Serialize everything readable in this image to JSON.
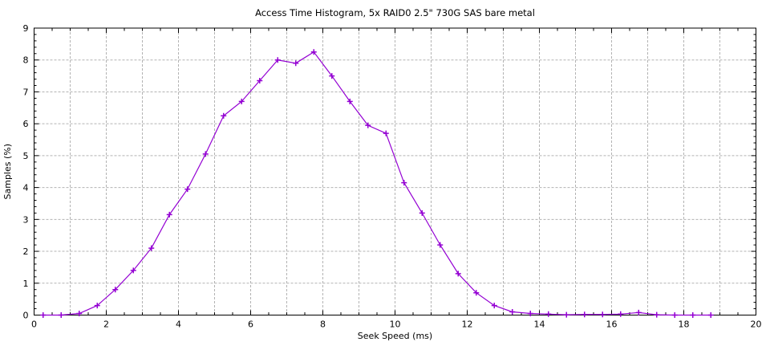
{
  "chart_data": {
    "type": "line",
    "title": "Access Time Histogram, 5x RAID0 2.5\" 730G SAS bare metal",
    "xlabel": "Seek Speed (ms)",
    "ylabel": "Samples (%)",
    "xlim": [
      0,
      20
    ],
    "ylim": [
      0,
      9
    ],
    "x_tick_labels": [
      0,
      2,
      4,
      6,
      8,
      10,
      12,
      14,
      16,
      18,
      20
    ],
    "y_tick_labels": [
      0,
      1,
      2,
      3,
      4,
      5,
      6,
      7,
      8,
      9
    ],
    "x_major_step": 2,
    "y_major_step": 1,
    "x_minor_step": 0.5,
    "y_minor_step": 0.2,
    "grid": true,
    "grid_x_step": 1,
    "grid_y_step": 1,
    "legend_position": "none",
    "colors": {
      "series": "#9400d3",
      "grid": "#b3b3b3",
      "axis": "#000000",
      "text": "#000000",
      "background": "#ffffff"
    },
    "series": [
      {
        "name": "samples",
        "color": "#9400d3",
        "marker": "plus",
        "line_width": 1.2,
        "x": [
          0.25,
          0.75,
          1.25,
          1.75,
          2.25,
          2.75,
          3.25,
          3.75,
          4.25,
          4.75,
          5.25,
          5.75,
          6.25,
          6.75,
          7.25,
          7.75,
          8.25,
          8.75,
          9.25,
          9.75,
          10.25,
          10.75,
          11.25,
          11.75,
          12.25,
          12.75,
          13.25,
          13.75,
          14.25,
          14.75,
          15.25,
          15.75,
          16.25,
          16.75,
          17.25,
          17.75,
          18.25,
          18.75
        ],
        "y": [
          0,
          0,
          0.05,
          0.3,
          0.8,
          1.4,
          2.1,
          3.15,
          3.95,
          5.05,
          6.25,
          6.7,
          7.35,
          8.0,
          7.9,
          8.25,
          7.5,
          6.7,
          5.95,
          5.7,
          4.15,
          3.2,
          2.2,
          1.3,
          0.7,
          0.3,
          0.1,
          0.05,
          0.03,
          0.01,
          0.02,
          0.02,
          0.03,
          0.08,
          0.01,
          0,
          0,
          0
        ]
      }
    ]
  }
}
